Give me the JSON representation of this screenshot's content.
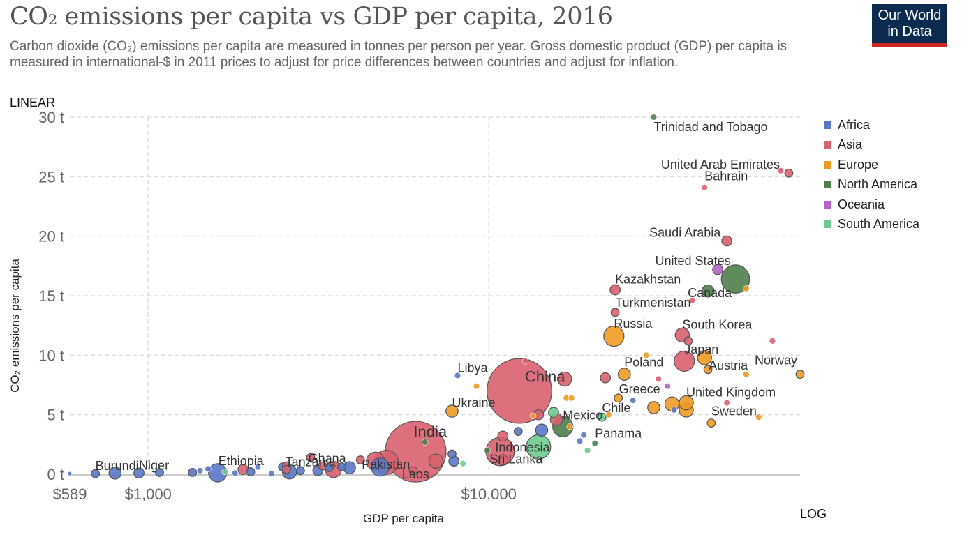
{
  "header": {
    "title": "CO₂ emissions per capita vs GDP per capita, 2016",
    "subtitle": "Carbon dioxide (CO₂) emissions per capita are measured in tonnes per person per year. Gross domestic product (GDP) per capita is measured in international-$ in 2011 prices to adjust for price differences between countries and adjust for inflation.",
    "logo_line1": "Our World",
    "logo_line2": "in Data"
  },
  "controls": {
    "y_scale_label": "LINEAR",
    "x_scale_label": "LOG"
  },
  "colors": {
    "Africa": "#5b78c6",
    "Asia": "#d9606e",
    "Europe": "#ef9a22",
    "North America": "#4f7f4b",
    "Oceania": "#b463c6",
    "South America": "#6dcc8e"
  },
  "chart_data": {
    "type": "scatter",
    "title": "CO₂ emissions per capita vs GDP per capita, 2016",
    "xlabel": "GDP per capita",
    "ylabel": "CO₂ emissions per capita",
    "x_scale": "log",
    "y_scale": "linear",
    "xlim": [
      589,
      82000
    ],
    "ylim": [
      0,
      30
    ],
    "x_ticks": [
      {
        "value": 589,
        "label": "$589"
      },
      {
        "value": 1000,
        "label": "$1,000"
      },
      {
        "value": 10000,
        "label": "$10,000"
      }
    ],
    "y_ticks": [
      {
        "value": 0,
        "label": "0 t"
      },
      {
        "value": 5,
        "label": "5 t"
      },
      {
        "value": 10,
        "label": "10 t"
      },
      {
        "value": 15,
        "label": "15 t"
      },
      {
        "value": 20,
        "label": "20 t"
      },
      {
        "value": 25,
        "label": "25 t"
      },
      {
        "value": 30,
        "label": "30 t"
      }
    ],
    "grid": true,
    "legend_position": "right",
    "legend": [
      "Africa",
      "Asia",
      "Europe",
      "North America",
      "Oceania",
      "South America"
    ],
    "size_variable": "population",
    "labeled_points": [
      {
        "name": "Trinidad and Tobago",
        "gdp": 30500,
        "co2": 30.0,
        "region": "North America",
        "size": 3
      },
      {
        "name": "United Arab Emirates",
        "gdp": 76000,
        "co2": 25.3,
        "region": "Asia",
        "size": 4
      },
      {
        "name": "Bahrain",
        "gdp": 43000,
        "co2": 24.1,
        "region": "Asia",
        "size": 3
      },
      {
        "name": "Saudi Arabia",
        "gdp": 50000,
        "co2": 19.6,
        "region": "Asia",
        "size": 5
      },
      {
        "name": "United States",
        "gdp": 53000,
        "co2": 16.4,
        "region": "North America",
        "size": 14
      },
      {
        "name": "Canada",
        "gdp": 44000,
        "co2": 15.4,
        "region": "North America",
        "size": 6
      },
      {
        "name": "Kazakhstan",
        "gdp": 23500,
        "co2": 15.5,
        "region": "Asia",
        "size": 5
      },
      {
        "name": "Turkmenistan",
        "gdp": 23500,
        "co2": 13.6,
        "region": "Asia",
        "size": 4
      },
      {
        "name": "Russia",
        "gdp": 23300,
        "co2": 11.6,
        "region": "Europe",
        "size": 10
      },
      {
        "name": "South Korea",
        "gdp": 37000,
        "co2": 11.7,
        "region": "Asia",
        "size": 7
      },
      {
        "name": "Japan",
        "gdp": 37500,
        "co2": 9.5,
        "region": "Asia",
        "size": 10
      },
      {
        "name": "Poland",
        "gdp": 25000,
        "co2": 8.4,
        "region": "Europe",
        "size": 6
      },
      {
        "name": "Norway",
        "gdp": 82000,
        "co2": 8.4,
        "region": "Europe",
        "size": 4
      },
      {
        "name": "Austria",
        "gdp": 44000,
        "co2": 8.8,
        "region": "Europe",
        "size": 4
      },
      {
        "name": "United Kingdom",
        "gdp": 38000,
        "co2": 6.0,
        "region": "Europe",
        "size": 7
      },
      {
        "name": "Greece",
        "gdp": 24000,
        "co2": 6.4,
        "region": "Europe",
        "size": 4
      },
      {
        "name": "Chile",
        "gdp": 21500,
        "co2": 4.8,
        "region": "South America",
        "size": 4
      },
      {
        "name": "Sweden",
        "gdp": 45000,
        "co2": 4.3,
        "region": "Europe",
        "size": 4
      },
      {
        "name": "Panama",
        "gdp": 20500,
        "co2": 2.6,
        "region": "North America",
        "size": 3
      },
      {
        "name": "Mexico",
        "gdp": 16500,
        "co2": 4.0,
        "region": "North America",
        "size": 10
      },
      {
        "name": "China",
        "gdp": 12300,
        "co2": 7.0,
        "region": "Asia",
        "size": 32
      },
      {
        "name": "Libya",
        "gdp": 8100,
        "co2": 8.3,
        "region": "Africa",
        "size": 3
      },
      {
        "name": "Ukraine",
        "gdp": 7800,
        "co2": 5.3,
        "region": "Europe",
        "size": 6
      },
      {
        "name": "Indonesia",
        "gdp": 10800,
        "co2": 1.9,
        "region": "Asia",
        "size": 14
      },
      {
        "name": "Sri Lanka",
        "gdp": 11000,
        "co2": 1.2,
        "region": "Asia",
        "size": 5
      },
      {
        "name": "India",
        "gdp": 6100,
        "co2": 1.9,
        "region": "Asia",
        "size": 30
      },
      {
        "name": "Pakistan",
        "gdp": 5000,
        "co2": 1.0,
        "region": "Asia",
        "size": 12
      },
      {
        "name": "Laos",
        "gdp": 6000,
        "co2": 0.3,
        "region": "Asia",
        "size": 4
      },
      {
        "name": "Ghana",
        "gdp": 3900,
        "co2": 0.55,
        "region": "Africa",
        "size": 6
      },
      {
        "name": "Tanzania",
        "gdp": 2600,
        "co2": 0.2,
        "region": "Africa",
        "size": 7
      },
      {
        "name": "Ethiopia",
        "gdp": 1600,
        "co2": 0.12,
        "region": "Africa",
        "size": 9
      },
      {
        "name": "Niger",
        "gdp": 940,
        "co2": 0.1,
        "region": "Africa",
        "size": 5
      },
      {
        "name": "Burundi",
        "gdp": 700,
        "co2": 0.05,
        "region": "Africa",
        "size": 4
      }
    ],
    "unlabeled_points": [
      {
        "gdp": 589,
        "co2": 0.05,
        "region": "Africa",
        "size": 2
      },
      {
        "gdp": 800,
        "co2": 0.1,
        "region": "Africa",
        "size": 6
      },
      {
        "gdp": 1080,
        "co2": 0.15,
        "region": "Africa",
        "size": 4
      },
      {
        "gdp": 1350,
        "co2": 0.15,
        "region": "Africa",
        "size": 4
      },
      {
        "gdp": 1420,
        "co2": 0.3,
        "region": "Africa",
        "size": 3
      },
      {
        "gdp": 1500,
        "co2": 0.45,
        "region": "Africa",
        "size": 3
      },
      {
        "gdp": 1680,
        "co2": 0.2,
        "region": "South America",
        "size": 3
      },
      {
        "gdp": 1800,
        "co2": 0.1,
        "region": "Africa",
        "size": 3
      },
      {
        "gdp": 1900,
        "co2": 0.4,
        "region": "Asia",
        "size": 5
      },
      {
        "gdp": 2000,
        "co2": 0.2,
        "region": "Africa",
        "size": 4
      },
      {
        "gdp": 2100,
        "co2": 0.6,
        "region": "Africa",
        "size": 3
      },
      {
        "gdp": 2300,
        "co2": 0.05,
        "region": "Africa",
        "size": 3
      },
      {
        "gdp": 2480,
        "co2": 0.6,
        "region": "Africa",
        "size": 4
      },
      {
        "gdp": 2550,
        "co2": 0.7,
        "region": "Asia",
        "size": 4
      },
      {
        "gdp": 2550,
        "co2": 0.4,
        "region": "Asia",
        "size": 4
      },
      {
        "gdp": 2800,
        "co2": 0.3,
        "region": "Africa",
        "size": 4
      },
      {
        "gdp": 3000,
        "co2": 1.4,
        "region": "Asia",
        "size": 4
      },
      {
        "gdp": 3150,
        "co2": 0.3,
        "region": "Africa",
        "size": 5
      },
      {
        "gdp": 3250,
        "co2": 0.7,
        "region": "Asia",
        "size": 4
      },
      {
        "gdp": 3400,
        "co2": 0.55,
        "region": "Africa",
        "size": 4
      },
      {
        "gdp": 3500,
        "co2": 0.4,
        "region": "Asia",
        "size": 8
      },
      {
        "gdp": 3700,
        "co2": 0.6,
        "region": "Africa",
        "size": 4
      },
      {
        "gdp": 4200,
        "co2": 1.2,
        "region": "Asia",
        "size": 4
      },
      {
        "gdp": 4650,
        "co2": 1.1,
        "region": "Asia",
        "size": 9
      },
      {
        "gdp": 4800,
        "co2": 0.6,
        "region": "Africa",
        "size": 9
      },
      {
        "gdp": 6500,
        "co2": 2.7,
        "region": "North America",
        "size": 3
      },
      {
        "gdp": 7000,
        "co2": 1.1,
        "region": "Asia",
        "size": 7
      },
      {
        "gdp": 7800,
        "co2": 1.7,
        "region": "Africa",
        "size": 4
      },
      {
        "gdp": 7900,
        "co2": 1.1,
        "region": "Africa",
        "size": 5
      },
      {
        "gdp": 8400,
        "co2": 0.9,
        "region": "South America",
        "size": 3
      },
      {
        "gdp": 9200,
        "co2": 7.4,
        "region": "Europe",
        "size": 3
      },
      {
        "gdp": 9900,
        "co2": 2.0,
        "region": "North America",
        "size": 3
      },
      {
        "gdp": 11000,
        "co2": 3.2,
        "region": "Asia",
        "size": 5
      },
      {
        "gdp": 12200,
        "co2": 3.6,
        "region": "Africa",
        "size": 4
      },
      {
        "gdp": 12800,
        "co2": 9.5,
        "region": "Asia",
        "size": 3
      },
      {
        "gdp": 13500,
        "co2": 4.9,
        "region": "Europe",
        "size": 3
      },
      {
        "gdp": 14000,
        "co2": 5.0,
        "region": "Asia",
        "size": 5
      },
      {
        "gdp": 14300,
        "co2": 3.7,
        "region": "Africa",
        "size": 6
      },
      {
        "gdp": 14000,
        "co2": 2.3,
        "region": "South America",
        "size": 12
      },
      {
        "gdp": 15500,
        "co2": 5.2,
        "region": "South America",
        "size": 5
      },
      {
        "gdp": 15800,
        "co2": 4.6,
        "region": "Asia",
        "size": 6
      },
      {
        "gdp": 16700,
        "co2": 8.0,
        "region": "Asia",
        "size": 7
      },
      {
        "gdp": 16900,
        "co2": 6.4,
        "region": "Europe",
        "size": 3
      },
      {
        "gdp": 17500,
        "co2": 6.4,
        "region": "Europe",
        "size": 3
      },
      {
        "gdp": 17300,
        "co2": 4.0,
        "region": "Europe",
        "size": 3
      },
      {
        "gdp": 18500,
        "co2": 2.8,
        "region": "Africa",
        "size": 3
      },
      {
        "gdp": 19000,
        "co2": 3.3,
        "region": "Africa",
        "size": 3
      },
      {
        "gdp": 19500,
        "co2": 2.0,
        "region": "South America",
        "size": 3
      },
      {
        "gdp": 22000,
        "co2": 8.1,
        "region": "Asia",
        "size": 5
      },
      {
        "gdp": 22500,
        "co2": 5.0,
        "region": "Europe",
        "size": 3
      },
      {
        "gdp": 26500,
        "co2": 6.2,
        "region": "Africa",
        "size": 3
      },
      {
        "gdp": 29000,
        "co2": 10.0,
        "region": "Europe",
        "size": 3
      },
      {
        "gdp": 30500,
        "co2": 5.6,
        "region": "Europe",
        "size": 6
      },
      {
        "gdp": 31500,
        "co2": 8.0,
        "region": "Asia",
        "size": 3
      },
      {
        "gdp": 33500,
        "co2": 7.4,
        "region": "Oceania",
        "size": 3
      },
      {
        "gdp": 34500,
        "co2": 5.9,
        "region": "Europe",
        "size": 7
      },
      {
        "gdp": 35000,
        "co2": 5.4,
        "region": "Africa",
        "size": 3
      },
      {
        "gdp": 38000,
        "co2": 5.4,
        "region": "Europe",
        "size": 7
      },
      {
        "gdp": 38500,
        "co2": 11.2,
        "region": "Asia",
        "size": 4
      },
      {
        "gdp": 39500,
        "co2": 14.6,
        "region": "Asia",
        "size": 3
      },
      {
        "gdp": 43000,
        "co2": 9.8,
        "region": "Europe",
        "size": 7
      },
      {
        "gdp": 47000,
        "co2": 17.2,
        "region": "Oceania",
        "size": 5
      },
      {
        "gdp": 50000,
        "co2": 6.0,
        "region": "Asia",
        "size": 3
      },
      {
        "gdp": 57000,
        "co2": 15.6,
        "region": "Europe",
        "size": 3
      },
      {
        "gdp": 57000,
        "co2": 8.4,
        "region": "Europe",
        "size": 3
      },
      {
        "gdp": 62000,
        "co2": 4.8,
        "region": "Europe",
        "size": 3
      },
      {
        "gdp": 68000,
        "co2": 11.2,
        "region": "Asia",
        "size": 3
      },
      {
        "gdp": 72000,
        "co2": 25.5,
        "region": "Asia",
        "size": 3
      }
    ]
  }
}
